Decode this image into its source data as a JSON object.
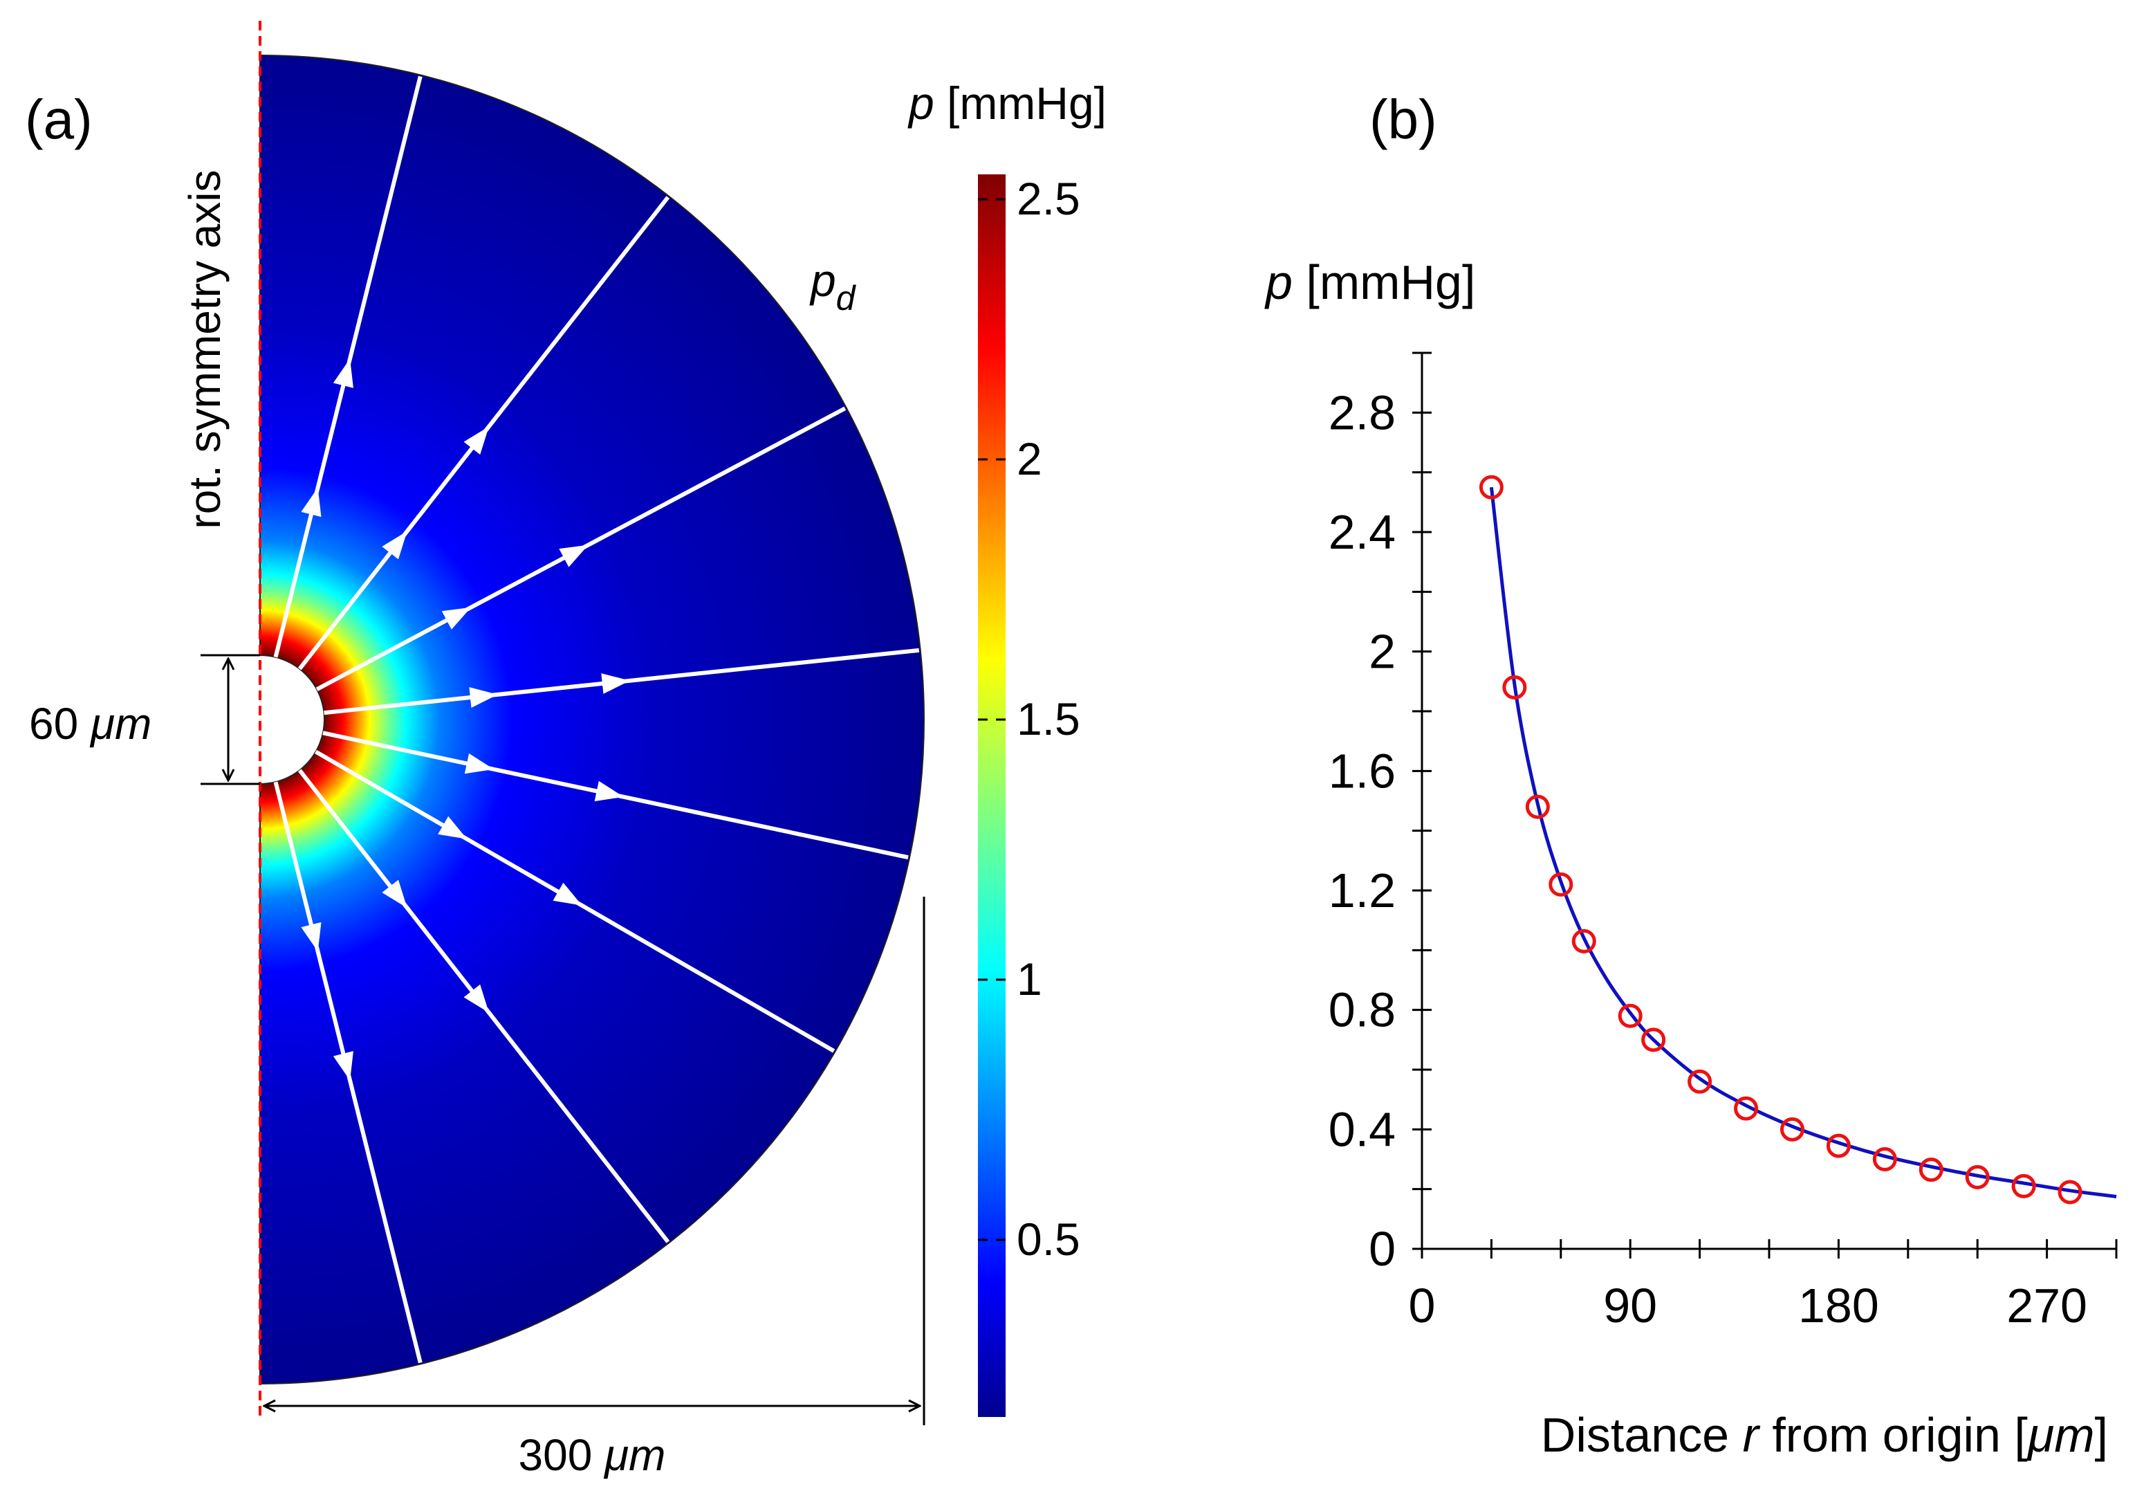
{
  "panel_a": {
    "label": "(a)",
    "axis_label": "rot. symmetry axis",
    "inner_dim_value": "60",
    "inner_dim_unit": "μm",
    "outer_dim_value": "300",
    "outer_dim_unit": "μm",
    "boundary_label_main": "p",
    "boundary_label_sub": "d",
    "colorbar_title_var": "p",
    "colorbar_title_unit": " [mmHg]",
    "colorbar_ticks": [
      "2.5",
      "2",
      "1.5",
      "1",
      "0.5"
    ],
    "colormap": [
      "#00008f",
      "#0000ff",
      "#007fff",
      "#00ffff",
      "#7fff7f",
      "#ffff00",
      "#ff7f00",
      "#ff0000",
      "#7f0000"
    ],
    "arrow_color": "#ffffff",
    "symmetry_axis_color": "#ff0000"
  },
  "panel_b": {
    "label": "(b)",
    "ylabel_var": "p",
    "ylabel_unit": " [mmHg]",
    "xlabel_pre": "Distance ",
    "xlabel_var": "r",
    "xlabel_post": " from origin [",
    "xlabel_unit": "μm",
    "xlabel_end": "]",
    "curve_color": "#1010c0",
    "marker_color": "#ee1111"
  },
  "chart_data": {
    "type": "line",
    "xlabel": "Distance r from origin [μm]",
    "ylabel": "p [mmHg]",
    "xlim": [
      0,
      300
    ],
    "ylim": [
      0,
      3.0
    ],
    "xticks": [
      0,
      90,
      180,
      270
    ],
    "yticks": [
      0,
      0.4,
      0.8,
      1.2,
      1.6,
      2.0,
      2.4,
      2.8
    ],
    "ytick_labels": [
      "0",
      "0.4",
      "0.8",
      "1.2",
      "1.6",
      "2",
      "2.4",
      "2.8"
    ],
    "grid": false,
    "series": [
      {
        "style": "line",
        "x": [
          30,
          40,
          50,
          60,
          70,
          80,
          90,
          100,
          120,
          140,
          160,
          180,
          200,
          220,
          240,
          260,
          280,
          300
        ],
        "y": [
          2.55,
          1.89,
          1.49,
          1.23,
          1.04,
          0.9,
          0.79,
          0.7,
          0.57,
          0.48,
          0.41,
          0.355,
          0.31,
          0.275,
          0.245,
          0.22,
          0.195,
          0.175
        ]
      },
      {
        "style": "markers",
        "x": [
          30,
          40,
          50,
          60,
          70,
          90,
          100,
          120,
          140,
          160,
          180,
          200,
          220,
          240,
          260,
          280
        ],
        "y": [
          2.55,
          1.88,
          1.48,
          1.22,
          1.03,
          0.78,
          0.7,
          0.56,
          0.47,
          0.4,
          0.345,
          0.3,
          0.265,
          0.24,
          0.21,
          0.19
        ]
      }
    ]
  }
}
